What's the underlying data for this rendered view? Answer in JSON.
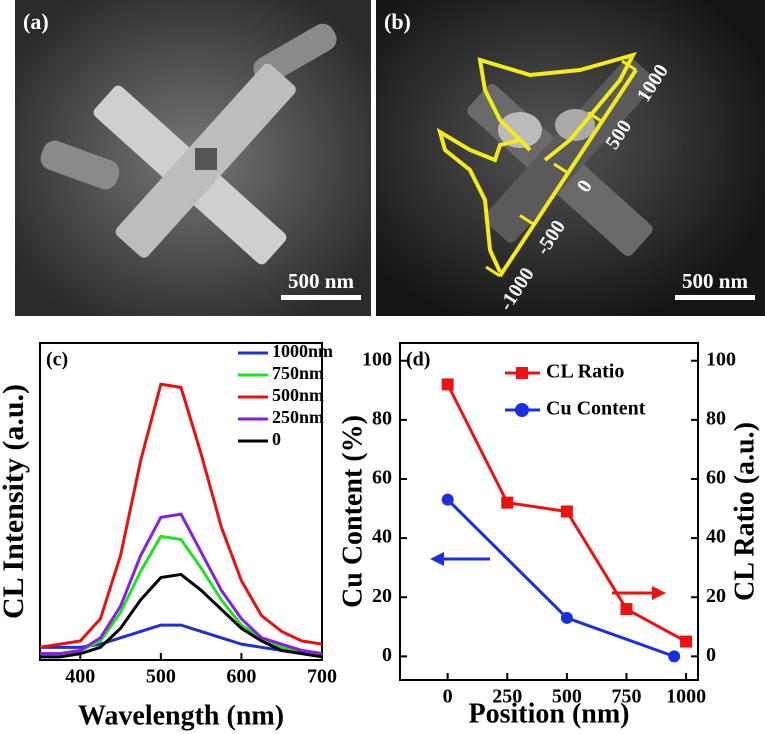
{
  "panels": [
    {
      "label": "(a)",
      "scale_bar": "500 nm"
    },
    {
      "label": "(b)",
      "scale_bar": "500 nm",
      "profile_ticks": [
        "1000",
        "500",
        "0",
        "-500",
        "-1000"
      ]
    }
  ],
  "chart_data": [
    {
      "type": "line",
      "label": "(c)",
      "xlabel": "Wavelength (nm)",
      "ylabel": "CL Intensity (a.u.)",
      "x": [
        350,
        375,
        400,
        425,
        450,
        475,
        500,
        525,
        550,
        575,
        600,
        625,
        650,
        675,
        700
      ],
      "xlim": [
        350,
        700
      ],
      "xticks": [
        400,
        500,
        600,
        700
      ],
      "ylim": [
        0,
        1
      ],
      "series": [
        {
          "name": "1000nm",
          "color": "#1f2fd0",
          "values": [
            0.04,
            0.04,
            0.04,
            0.05,
            0.07,
            0.09,
            0.11,
            0.11,
            0.09,
            0.07,
            0.05,
            0.04,
            0.03,
            0.03,
            0.02
          ]
        },
        {
          "name": "750nm",
          "color": "#22e022",
          "values": [
            0.02,
            0.02,
            0.03,
            0.06,
            0.15,
            0.28,
            0.39,
            0.38,
            0.29,
            0.19,
            0.11,
            0.07,
            0.04,
            0.03,
            0.02
          ]
        },
        {
          "name": "500nm",
          "color": "#e81010",
          "values": [
            0.04,
            0.05,
            0.06,
            0.13,
            0.33,
            0.63,
            0.87,
            0.86,
            0.65,
            0.42,
            0.25,
            0.14,
            0.09,
            0.06,
            0.05
          ]
        },
        {
          "name": "250nm",
          "color": "#8a1fe0",
          "values": [
            0.02,
            0.02,
            0.03,
            0.07,
            0.17,
            0.33,
            0.45,
            0.46,
            0.34,
            0.22,
            0.13,
            0.07,
            0.05,
            0.03,
            0.02
          ]
        },
        {
          "name": "0",
          "color": "#000000",
          "values": [
            0.01,
            0.01,
            0.02,
            0.04,
            0.1,
            0.19,
            0.26,
            0.27,
            0.22,
            0.16,
            0.1,
            0.06,
            0.03,
            0.02,
            0.01
          ]
        }
      ]
    },
    {
      "type": "line",
      "label": "(d)",
      "xlabel": "Position (nm)",
      "ylabel": "Cu Content (%)",
      "y2label": "CL Ratio (a.u.)",
      "xlim": [
        -200,
        1050
      ],
      "xticks": [
        0,
        250,
        500,
        750,
        1000
      ],
      "ylim": [
        -8,
        106
      ],
      "yticks": [
        0,
        20,
        40,
        60,
        80,
        100
      ],
      "y2lim": [
        -8,
        106
      ],
      "y2ticks": [
        0,
        20,
        40,
        60,
        80,
        100
      ],
      "series": [
        {
          "name": "CL Ratio",
          "color": "#ee1111",
          "marker": "square",
          "axis": "y2",
          "x": [
            0,
            250,
            500,
            750,
            1000
          ],
          "values": [
            92,
            52,
            49,
            16,
            5
          ]
        },
        {
          "name": "Cu Content",
          "color": "#1a2fe0",
          "marker": "circle",
          "x": [
            0,
            500,
            950
          ],
          "values": [
            53,
            13,
            0
          ]
        }
      ]
    }
  ]
}
